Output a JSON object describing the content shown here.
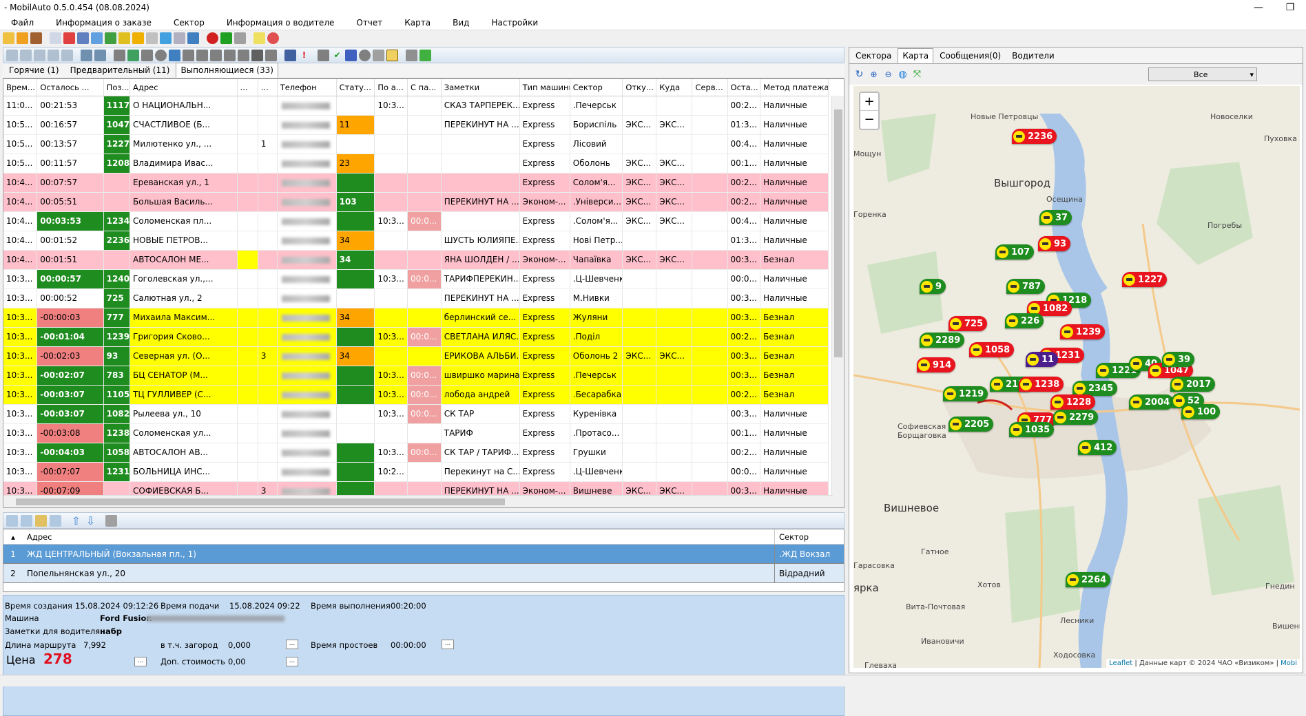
{
  "window": {
    "title": "- MobilAuto 0.5.0.454 (08.08.2024)",
    "minimize": "—",
    "maximize": "❐"
  },
  "menu": [
    "Файл",
    "Информация о заказе",
    "Сектор",
    "Информация о водителе",
    "Отчет",
    "Карта",
    "Вид",
    "Настройки"
  ],
  "order_tabs": [
    {
      "label": "Горячие (1)",
      "active": false
    },
    {
      "label": "Предварительный (11)",
      "active": false
    },
    {
      "label": "Выполняющиеся (33)",
      "active": true
    }
  ],
  "columns": [
    "Врем...",
    "Осталось ...",
    "Поз...",
    "Адрес",
    "...",
    "...",
    "Телефон",
    "Стату...",
    "По а...",
    "С па...",
    "Заметки",
    "Тип машины",
    "Сектор",
    "Отку...",
    "Куда",
    "Серв...",
    "Оста...",
    "Метод платежа"
  ],
  "rows": [
    {
      "style": "",
      "time": "11:0...",
      "left": "00:21:53",
      "left_c": "",
      "pos": "1117",
      "pos_c": "gr",
      "addr": "О НАЦИОНАЛЬН...",
      "c5": "",
      "c5c": "",
      "c6": "",
      "phone": "",
      "status": "",
      "status_c": "",
      "poa": "10:3...",
      "poa_c": "",
      "spa": "",
      "spa_c": "",
      "notes": "СКАЗ ТАРПЕРЕК...",
      "car": "Express",
      "sector": ".Печерськ",
      "from": "",
      "to": "",
      "serv": "",
      "ost": "00:2...",
      "pay": "Наличные"
    },
    {
      "style": "",
      "time": "10:5...",
      "left": "00:16:57",
      "left_c": "",
      "pos": "1047",
      "pos_c": "gr",
      "addr": "СЧАСТЛИВОЕ (Б...",
      "c5": "",
      "c5c": "",
      "c6": "",
      "phone": "",
      "status": "11",
      "status_c": "orange",
      "poa": "",
      "poa_c": "",
      "spa": "",
      "spa_c": "",
      "notes": "ПЕРЕКИНУТ НА ...",
      "car": "Express",
      "sector": "Бориспіль",
      "from": "ЭКС...",
      "to": "ЭКС...",
      "serv": "",
      "ost": "01:3...",
      "pay": "Наличные"
    },
    {
      "style": "",
      "time": "10:5...",
      "left": "00:13:57",
      "left_c": "",
      "pos": "1227",
      "pos_c": "gr",
      "addr": "Милютенко ул., ...",
      "c5": "",
      "c5c": "",
      "c6": "1",
      "phone": "",
      "status": "",
      "status_c": "",
      "poa": "",
      "poa_c": "",
      "spa": "",
      "spa_c": "",
      "notes": "",
      "car": "Express",
      "sector": "Лісовий",
      "from": "",
      "to": "",
      "serv": "",
      "ost": "00:4...",
      "pay": "Наличные"
    },
    {
      "style": "",
      "time": "10:5...",
      "left": "00:11:57",
      "left_c": "",
      "pos": "1208",
      "pos_c": "gr",
      "addr": "Владимира Ивас...",
      "c5": "",
      "c5c": "",
      "c6": "",
      "phone": "",
      "status": "23",
      "status_c": "orange",
      "poa": "",
      "poa_c": "",
      "spa": "",
      "spa_c": "",
      "notes": "",
      "car": "Express",
      "sector": "Оболонь",
      "from": "ЭКС...",
      "to": "ЭКС...",
      "serv": "",
      "ost": "00:1...",
      "pay": "Наличные"
    },
    {
      "style": "pink",
      "time": "10:4...",
      "left": "00:07:57",
      "left_c": "",
      "pos": "",
      "pos_c": "",
      "addr": "Ереванская ул., 1",
      "c5": "",
      "c5c": "",
      "c6": "",
      "phone": "",
      "status": "",
      "status_c": "gr",
      "poa": "",
      "poa_c": "",
      "spa": "",
      "spa_c": "",
      "notes": "",
      "car": "Express",
      "sector": "Солом'я...",
      "from": "ЭКС...",
      "to": "ЭКС...",
      "serv": "",
      "ost": "00:2...",
      "pay": "Наличные"
    },
    {
      "style": "pink",
      "time": "10:4...",
      "left": "00:05:51",
      "left_c": "",
      "pos": "",
      "pos_c": "",
      "addr": "Большая Василь...",
      "c5": "",
      "c5c": "",
      "c6": "",
      "phone": "",
      "status": "103",
      "status_c": "gr",
      "poa": "",
      "poa_c": "",
      "spa": "",
      "spa_c": "",
      "notes": "ПЕРЕКИНУТ НА ...",
      "car": "Эконом-...",
      "sector": ".Універси...",
      "from": "ЭКС...",
      "to": "ЭКС...",
      "serv": "",
      "ost": "00:2...",
      "pay": "Наличные"
    },
    {
      "style": "",
      "time": "10:4...",
      "left": "00:03:53",
      "left_c": "gr",
      "pos": "1234",
      "pos_c": "gr",
      "addr": "Соломенская пл...",
      "c5": "",
      "c5c": "",
      "c6": "",
      "phone": "",
      "status": "",
      "status_c": "gr",
      "poa": "10:3...",
      "poa_c": "",
      "spa": "00:0...",
      "spa_c": "pinkc",
      "notes": "",
      "car": "Express",
      "sector": ".Солом'я...",
      "from": "ЭКС...",
      "to": "ЭКС...",
      "serv": "",
      "ost": "00:4...",
      "pay": "Наличные"
    },
    {
      "style": "",
      "time": "10:4...",
      "left": "00:01:52",
      "left_c": "",
      "pos": "2236",
      "pos_c": "gr",
      "addr": "НОВЫЕ ПЕТРОВ...",
      "c5": "",
      "c5c": "",
      "c6": "",
      "phone": "",
      "status": "34",
      "status_c": "orange",
      "poa": "",
      "poa_c": "",
      "spa": "",
      "spa_c": "",
      "notes": "ШУСТЬ ЮЛИЯПЕ...",
      "car": "Express",
      "sector": "Нові Петр...",
      "from": "",
      "to": "",
      "serv": "",
      "ost": "01:3...",
      "pay": "Наличные"
    },
    {
      "style": "pink",
      "time": "10:4...",
      "left": "00:01:51",
      "left_c": "",
      "pos": "",
      "pos_c": "",
      "addr": "АВТОСАЛОН МЕ...",
      "c5": "",
      "c5c": "yel",
      "c6": "",
      "phone": "",
      "status": "34",
      "status_c": "gr",
      "poa": "",
      "poa_c": "",
      "spa": "",
      "spa_c": "",
      "notes": "ЯНА ШОЛДЕН / ...",
      "car": "Эконом-...",
      "sector": "Чапаївка",
      "from": "ЭКС...",
      "to": "ЭКС...",
      "serv": "",
      "ost": "00:3...",
      "pay": "Безнал"
    },
    {
      "style": "",
      "time": "10:3...",
      "left": "00:00:57",
      "left_c": "gr",
      "pos": "1240",
      "pos_c": "gr",
      "addr": "Гоголевская ул.,...",
      "c5": "",
      "c5c": "",
      "c6": "",
      "phone": "",
      "status": "",
      "status_c": "gr",
      "poa": "10:3...",
      "poa_c": "",
      "spa": "00:0...",
      "spa_c": "pinkc",
      "notes": "ТАРИФПЕРЕКИН...",
      "car": "Express",
      "sector": ".Ц-Шевченк",
      "from": "",
      "to": "",
      "serv": "",
      "ost": "00:0...",
      "pay": "Наличные"
    },
    {
      "style": "",
      "time": "10:3...",
      "left": "00:00:52",
      "left_c": "",
      "pos": "725",
      "pos_c": "gr",
      "addr": "Салютная ул., 2",
      "c5": "",
      "c5c": "",
      "c6": "",
      "phone": "",
      "status": "",
      "status_c": "",
      "poa": "",
      "poa_c": "",
      "spa": "",
      "spa_c": "",
      "notes": "ПЕРЕКИНУТ НА ...",
      "car": "Express",
      "sector": "М.Нивки",
      "from": "",
      "to": "",
      "serv": "",
      "ost": "00:3...",
      "pay": "Наличные"
    },
    {
      "style": "yellow",
      "time": "10:3...",
      "left": "-00:00:03",
      "left_c": "redc",
      "pos": "777",
      "pos_c": "gr",
      "addr": "Михаила Максим...",
      "c5": "",
      "c5c": "",
      "c6": "",
      "phone": "",
      "status": "34",
      "status_c": "orange",
      "poa": "",
      "poa_c": "",
      "spa": "",
      "spa_c": "",
      "notes": "берлинский  се...",
      "car": "Express",
      "sector": "Жуляни",
      "from": "",
      "to": "",
      "serv": "",
      "ost": "00:3...",
      "pay": "Безнал"
    },
    {
      "style": "yellow",
      "time": "10:3...",
      "left": "-00:01:04",
      "left_c": "gr",
      "pos": "1239",
      "pos_c": "gr",
      "addr": "Григория Сково...",
      "c5": "",
      "c5c": "",
      "c6": "",
      "phone": "",
      "status": "",
      "status_c": "gr",
      "poa": "10:3...",
      "poa_c": "",
      "spa": "00:0...",
      "spa_c": "pinkc",
      "notes": "СВЕТЛАНА ИЛЯС...",
      "car": "Express",
      "sector": ".Поділ",
      "from": "",
      "to": "",
      "serv": "",
      "ost": "00:2...",
      "pay": "Безнал"
    },
    {
      "style": "yellow",
      "time": "10:3...",
      "left": "-00:02:03",
      "left_c": "redc",
      "pos": "93",
      "pos_c": "gr",
      "addr": "Северная ул. (О...",
      "c5": "",
      "c5c": "",
      "c6": "3",
      "phone": "",
      "status": "34",
      "status_c": "orange",
      "poa": "",
      "poa_c": "",
      "spa": "",
      "spa_c": "",
      "notes": "ЕРИКОВА АЛЬБИ...",
      "car": "Express",
      "sector": "Оболонь 2",
      "from": "ЭКС...",
      "to": "ЭКС...",
      "serv": "",
      "ost": "00:3...",
      "pay": "Безнал"
    },
    {
      "style": "yellow",
      "time": "10:3...",
      "left": "-00:02:07",
      "left_c": "gr",
      "pos": "783",
      "pos_c": "gr",
      "addr": "БЦ СЕНАТОР (М...",
      "c5": "",
      "c5c": "",
      "c6": "",
      "phone": "",
      "status": "",
      "status_c": "gr",
      "poa": "10:3...",
      "poa_c": "",
      "spa": "00:0...",
      "spa_c": "pinkc",
      "notes": "швиршко марина",
      "car": "Express",
      "sector": ".Печерськ",
      "from": "",
      "to": "",
      "serv": "",
      "ost": "00:3...",
      "pay": "Безнал"
    },
    {
      "style": "yellow",
      "time": "10:3...",
      "left": "-00:03:07",
      "left_c": "gr",
      "pos": "1105",
      "pos_c": "gr",
      "addr": "ТЦ ГУЛЛИВЕР (С...",
      "c5": "",
      "c5c": "",
      "c6": "",
      "phone": "",
      "status": "",
      "status_c": "gr",
      "poa": "10:3...",
      "poa_c": "",
      "spa": "00:0...",
      "spa_c": "pinkc",
      "notes": "лобода андрей",
      "car": "Express",
      "sector": ".Бесарабка",
      "from": "",
      "to": "",
      "serv": "",
      "ost": "00:2...",
      "pay": "Безнал"
    },
    {
      "style": "",
      "time": "10:3...",
      "left": "-00:03:07",
      "left_c": "gr",
      "pos": "1082",
      "pos_c": "gr",
      "addr": "Рылеева ул., 10",
      "c5": "",
      "c5c": "",
      "c6": "",
      "phone": "",
      "status": "",
      "status_c": "",
      "poa": "10:3...",
      "poa_c": "",
      "spa": "00:0...",
      "spa_c": "pinkc",
      "notes": "СК ТАР",
      "car": "Express",
      "sector": "Куренівка",
      "from": "",
      "to": "",
      "serv": "",
      "ost": "00:3...",
      "pay": "Наличные"
    },
    {
      "style": "",
      "time": "10:3...",
      "left": "-00:03:08",
      "left_c": "redc",
      "pos": "1238",
      "pos_c": "gr",
      "addr": "Соломенская ул...",
      "c5": "",
      "c5c": "",
      "c6": "",
      "phone": "",
      "status": "",
      "status_c": "",
      "poa": "",
      "poa_c": "",
      "spa": "",
      "spa_c": "",
      "notes": "ТАРИФ",
      "car": "Express",
      "sector": ".Протасо...",
      "from": "",
      "to": "",
      "serv": "",
      "ost": "00:1...",
      "pay": "Наличные"
    },
    {
      "style": "",
      "time": "10:3...",
      "left": "-00:04:03",
      "left_c": "gr",
      "pos": "1058",
      "pos_c": "gr",
      "addr": "АВТОСАЛОН АВ...",
      "c5": "",
      "c5c": "",
      "c6": "",
      "phone": "",
      "status": "",
      "status_c": "gr",
      "poa": "10:3...",
      "poa_c": "",
      "spa": "00:0...",
      "spa_c": "pinkc",
      "notes": "СК ТАР / ТАРИФ...",
      "car": "Express",
      "sector": "Грушки",
      "from": "",
      "to": "",
      "serv": "",
      "ost": "00:2...",
      "pay": "Наличные"
    },
    {
      "style": "",
      "time": "10:3...",
      "left": "-00:07:07",
      "left_c": "redc",
      "pos": "1231",
      "pos_c": "gr",
      "addr": "БОЛЬНИЦА ИНС...",
      "c5": "",
      "c5c": "",
      "c6": "",
      "phone": "",
      "status": "",
      "status_c": "gr",
      "poa": "10:2...",
      "poa_c": "",
      "spa": "",
      "spa_c": "",
      "notes": "Перекинут на С...",
      "car": "Express",
      "sector": ".Ц-Шевченк",
      "from": "",
      "to": "",
      "serv": "",
      "ost": "00:0...",
      "pay": "Наличные"
    },
    {
      "style": "pink",
      "time": "10:3...",
      "left": "-00:07:09",
      "left_c": "redc",
      "pos": "",
      "pos_c": "pk2",
      "addr": "СОФИЕВСКАЯ Б...",
      "c5": "",
      "c5c": "",
      "c6": "3",
      "phone": "",
      "status": "",
      "status_c": "gr",
      "poa": "",
      "poa_c": "",
      "spa": "",
      "spa_c": "",
      "notes": "ПЕРЕКИНУТ НА ...",
      "car": "Эконом-...",
      "sector": "Вишневе",
      "from": "ЭКС...",
      "to": "ЭКС...",
      "serv": "",
      "ost": "00:3...",
      "pay": "Наличные"
    }
  ],
  "route": {
    "col_address": "Адрес",
    "col_sector": "Сектор",
    "points": [
      {
        "n": "1",
        "address": "ЖД ЦЕНТРАЛЬНЫЙ (Вокзальная пл., 1)",
        "sector": ".ЖД Вокзал"
      },
      {
        "n": "2",
        "address": "Попельнянская ул., 20",
        "sector": "Відрадний"
      }
    ]
  },
  "details": {
    "created_label": "Время создания",
    "created": "15.08.2024 09:12:26",
    "supply_label": "Время подачи",
    "supply": "15.08.2024 09:22",
    "exec_label": "Время выполнения",
    "exec": "00:20:00",
    "car_label": "Машина",
    "car": "Ford Fusion",
    "notes_label": "Заметки для водителя",
    "notes": "набр",
    "route_len_label": "Длина маршрута",
    "route_len": "7,992",
    "outcity_label": "в т.ч. загород",
    "outcity": "0,000",
    "idle_label": "Время простоев",
    "idle": "00:00:00",
    "price_label": "Цена",
    "price": "278",
    "extra_label": "Доп. стоимость",
    "extra": "0,00",
    "dots": "..."
  },
  "right_tabs": [
    {
      "label": "Сектора",
      "active": false
    },
    {
      "label": "Карта",
      "active": true
    },
    {
      "label": "Сообщения(0)",
      "active": false
    },
    {
      "label": "Водители",
      "active": false
    }
  ],
  "map": {
    "filter_value": "Все",
    "attribution_link": "Leaflet",
    "attribution_text": "| Данные карт © 2024 ЧАО «Визиком» |",
    "attribution_link2": "Mobi",
    "labels": [
      {
        "t": "Новые Петровцы",
        "big": false
      },
      {
        "t": "Новоселки",
        "big": false
      },
      {
        "t": "Пуховка",
        "big": false
      },
      {
        "t": "Мощун",
        "big": false
      },
      {
        "t": "Вышгород",
        "big": true
      },
      {
        "t": "Осещина",
        "big": false
      },
      {
        "t": "Горенка",
        "big": false
      },
      {
        "t": "Погребы",
        "big": false
      },
      {
        "t": "Софиевская Борщаговка",
        "big": false
      },
      {
        "t": "Вишневое",
        "big": true
      },
      {
        "t": "Гатное",
        "big": false
      },
      {
        "t": "Гарасовка",
        "big": false
      },
      {
        "t": "ярка",
        "big": true
      },
      {
        "t": "Хотов",
        "big": false
      },
      {
        "t": "Вита-Почтовая",
        "big": false
      },
      {
        "t": "Гнедин",
        "big": false
      },
      {
        "t": "Лесники",
        "big": false
      },
      {
        "t": "Вишенки",
        "big": false
      },
      {
        "t": "Ивановичи",
        "big": false
      },
      {
        "t": "Ходосовка",
        "big": false
      },
      {
        "t": "Глеваха",
        "big": false
      }
    ],
    "markers": [
      {
        "n": "2236",
        "c": "r"
      },
      {
        "n": "37",
        "c": "g"
      },
      {
        "n": "107",
        "c": "g"
      },
      {
        "n": "93",
        "c": "r"
      },
      {
        "n": "1227",
        "c": "r"
      },
      {
        "n": "9",
        "c": "g"
      },
      {
        "n": "787",
        "c": "g"
      },
      {
        "n": "1218",
        "c": "g"
      },
      {
        "n": "1082",
        "c": "r"
      },
      {
        "n": "725",
        "c": "r"
      },
      {
        "n": "226",
        "c": "g"
      },
      {
        "n": "1239",
        "c": "r"
      },
      {
        "n": "2289",
        "c": "g"
      },
      {
        "n": "1058",
        "c": "r"
      },
      {
        "n": "1231",
        "c": "r"
      },
      {
        "n": "914",
        "c": "r"
      },
      {
        "n": "11",
        "c": "p"
      },
      {
        "n": "1221",
        "c": "g"
      },
      {
        "n": "40",
        "c": "g"
      },
      {
        "n": "1047",
        "c": "r"
      },
      {
        "n": "2158",
        "c": "g"
      },
      {
        "n": "1238",
        "c": "r"
      },
      {
        "n": "2345",
        "c": "g"
      },
      {
        "n": "2017",
        "c": "g"
      },
      {
        "n": "1219",
        "c": "g"
      },
      {
        "n": "1228",
        "c": "r"
      },
      {
        "n": "2004",
        "c": "g"
      },
      {
        "n": "52",
        "c": "g"
      },
      {
        "n": "100",
        "c": "g"
      },
      {
        "n": "777",
        "c": "r"
      },
      {
        "n": "2279",
        "c": "g"
      },
      {
        "n": "2205",
        "c": "g"
      },
      {
        "n": "1035",
        "c": "g"
      },
      {
        "n": "412",
        "c": "g"
      },
      {
        "n": "2264",
        "c": "g"
      },
      {
        "n": "39",
        "c": "g"
      }
    ]
  }
}
